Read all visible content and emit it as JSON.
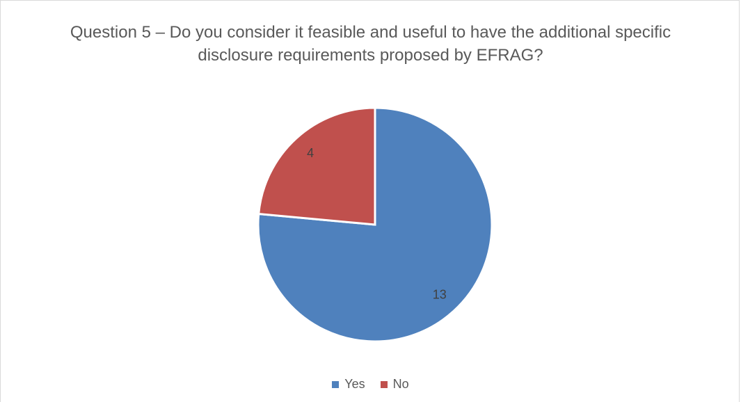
{
  "chart_data": {
    "type": "pie",
    "title_lines": [
      "Question 5 – Do you consider it feasible and useful to have the additional specific",
      "disclosure requirements proposed by EFRAG?"
    ],
    "categories": [
      "Yes",
      "No"
    ],
    "values": [
      13,
      4
    ],
    "colors": [
      "#4f81bd",
      "#c0504d"
    ],
    "start_angle_deg": 0,
    "legend_position": "bottom"
  }
}
